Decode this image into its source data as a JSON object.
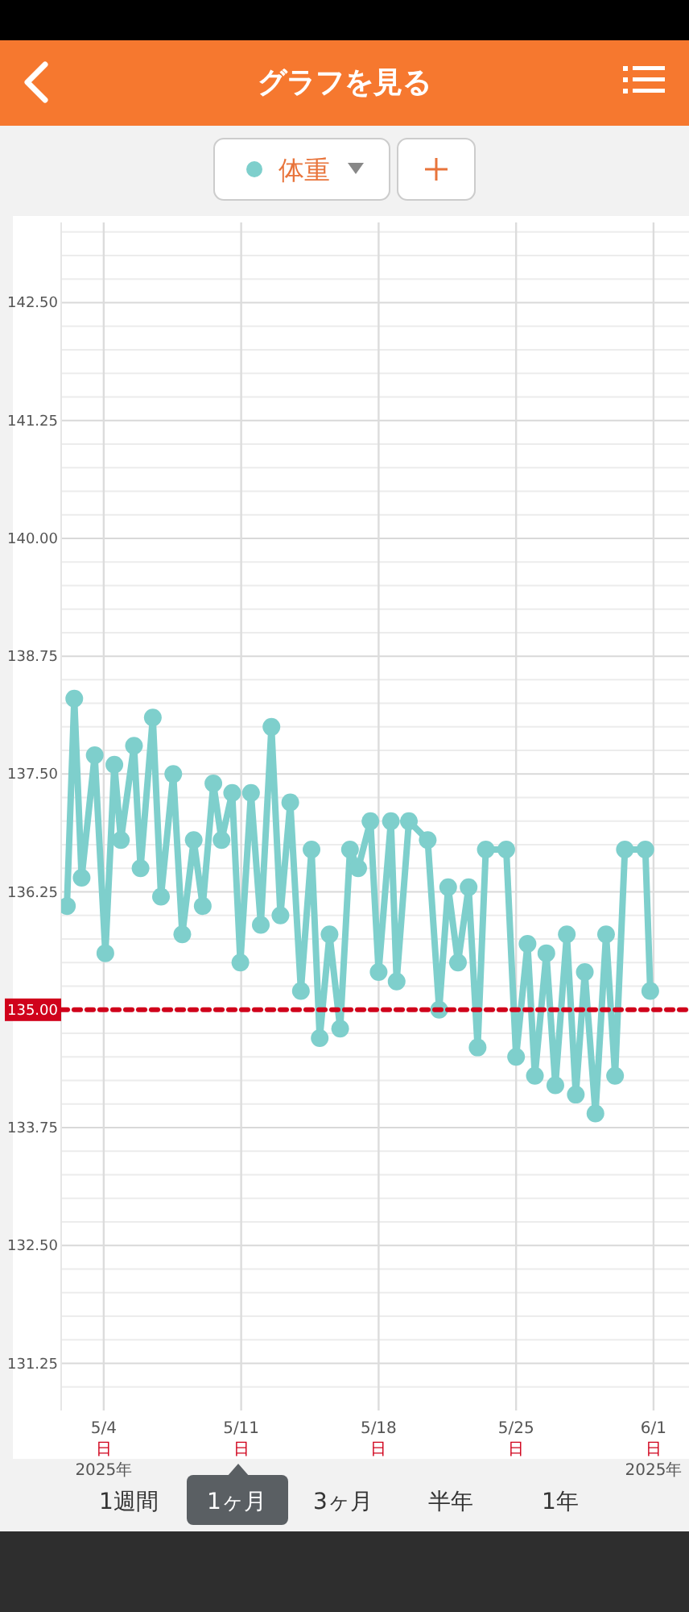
{
  "chart_data": {
    "type": "line",
    "title": "グラフを見る",
    "legend": "top",
    "marker": "circle",
    "line_style": "solid",
    "grid": true,
    "xlim": [
      "2025-05-01T20:00",
      "2025-06-01T04:00"
    ],
    "xticks": [
      {
        "value": "2025-05-04",
        "label": "5/4\n日\n2025年"
      },
      {
        "value": "2025-05-11",
        "label": "5/11\n日"
      },
      {
        "value": "2025-05-18",
        "label": "5/18\n日"
      },
      {
        "value": "2025-05-25",
        "label": "5/25\n日"
      },
      {
        "value": "2025-06-01",
        "label": "6/1\n日\n2025年"
      }
    ],
    "ylim": [
      130.75,
      143.35
    ],
    "yticks": [
      {
        "value": 131,
        "label": null
      },
      {
        "value": 131.25,
        "label": "131.25"
      },
      {
        "value": 131.5,
        "label": null
      },
      {
        "value": 131.75,
        "label": null
      },
      {
        "value": 132,
        "label": null
      },
      {
        "value": 132.25,
        "label": null
      },
      {
        "value": 132.5,
        "label": "132.50"
      },
      {
        "value": 132.75,
        "label": null
      },
      {
        "value": 133,
        "label": null
      },
      {
        "value": 133.25,
        "label": null
      },
      {
        "value": 133.5,
        "label": null
      },
      {
        "value": 133.75,
        "label": "133.75"
      },
      {
        "value": 134,
        "label": null
      },
      {
        "value": 134.25,
        "label": null
      },
      {
        "value": 134.5,
        "label": null
      },
      {
        "value": 134.75,
        "label": null
      },
      {
        "value": 135,
        "label": null
      },
      {
        "value": 135.25,
        "label": null
      },
      {
        "value": 135.5,
        "label": null
      },
      {
        "value": 135.75,
        "label": null
      },
      {
        "value": 136,
        "label": null
      },
      {
        "value": 136.25,
        "label": "136.25"
      },
      {
        "value": 136.5,
        "label": null
      },
      {
        "value": 136.75,
        "label": null
      },
      {
        "value": 137,
        "label": null
      },
      {
        "value": 137.25,
        "label": null
      },
      {
        "value": 137.5,
        "label": "137.50"
      },
      {
        "value": 137.75,
        "label": null
      },
      {
        "value": 138,
        "label": null
      },
      {
        "value": 138.25,
        "label": null
      },
      {
        "value": 138.5,
        "label": null
      },
      {
        "value": 138.75,
        "label": "138.75"
      },
      {
        "value": 139,
        "label": null
      },
      {
        "value": 139.25,
        "label": null
      },
      {
        "value": 139.5,
        "label": null
      },
      {
        "value": 139.75,
        "label": null
      },
      {
        "value": 140,
        "label": "140.00"
      },
      {
        "value": 140.25,
        "label": null
      },
      {
        "value": 140.5,
        "label": null
      },
      {
        "value": 140.75,
        "label": null
      },
      {
        "value": 141,
        "label": null
      },
      {
        "value": 141.25,
        "label": "141.25"
      },
      {
        "value": 141.5,
        "label": null
      },
      {
        "value": 141.75,
        "label": null
      },
      {
        "value": 142,
        "label": null
      },
      {
        "value": 142.25,
        "label": null
      },
      {
        "value": 142.5,
        "label": "142.50"
      },
      {
        "value": 142.75,
        "label": null
      },
      {
        "value": 143,
        "label": null
      },
      {
        "value": 143.25,
        "label": null
      }
    ],
    "ref_lines": [
      {
        "axis": "y",
        "value": 135,
        "label": "135.00",
        "color": "#d0021b",
        "line_style": "dotted"
      }
    ],
    "annotations": [
      "1週間",
      "1ヶ月",
      "3ヶ月",
      "半年",
      "1年"
    ],
    "series": [
      {
        "name": "体重",
        "color": "#7ecfcc",
        "x": [
          "2025-05-02T03:00",
          "2025-05-02T12:00",
          "2025-05-02T21:00",
          "2025-05-03T13:00",
          "2025-05-04T02:00",
          "2025-05-04T13:00",
          "2025-05-04T21:00",
          "2025-05-05T13:00",
          "2025-05-05T21:00",
          "2025-05-06T12:00",
          "2025-05-06T22:00",
          "2025-05-07T13:00",
          "2025-05-08T00:00",
          "2025-05-08T14:00",
          "2025-05-09T01:00",
          "2025-05-09T14:00",
          "2025-05-10T00:00",
          "2025-05-10T13:00",
          "2025-05-10T23:00",
          "2025-05-11T12:00",
          "2025-05-12T00:00",
          "2025-05-12T13:00",
          "2025-05-13T00:00",
          "2025-05-13T12:00",
          "2025-05-14T01:00",
          "2025-05-14T14:00",
          "2025-05-15T00:00",
          "2025-05-15T12:00",
          "2025-05-16T01:00",
          "2025-05-16T13:00",
          "2025-05-16T23:00",
          "2025-05-17T14:00",
          "2025-05-18T00:00",
          "2025-05-18T15:00",
          "2025-05-18T22:00",
          "2025-05-19T13:00",
          "2025-05-20T12:00",
          "2025-05-21T02:00",
          "2025-05-21T13:00",
          "2025-05-22T01:00",
          "2025-05-22T14:00",
          "2025-05-23T01:00",
          "2025-05-23T11:00",
          "2025-05-24T12:00",
          "2025-05-25T00:00",
          "2025-05-25T14:00",
          "2025-05-25T23:00",
          "2025-05-26T13:00",
          "2025-05-27T00:00",
          "2025-05-27T14:00",
          "2025-05-28T01:00",
          "2025-05-28T12:00",
          "2025-05-29T01:00",
          "2025-05-29T14:00",
          "2025-05-30T01:00",
          "2025-05-30T13:00",
          "2025-05-31T14:00",
          "2025-05-31T20:00"
        ],
        "values": [
          136.1,
          138.3,
          136.4,
          137.7,
          135.6,
          137.6,
          136.8,
          137.8,
          136.5,
          138.1,
          136.2,
          137.5,
          135.8,
          136.8,
          136.1,
          137.4,
          136.8,
          137.3,
          135.5,
          137.3,
          135.9,
          138.0,
          136.0,
          137.2,
          135.2,
          136.7,
          134.7,
          135.8,
          134.8,
          136.7,
          136.5,
          137.0,
          135.4,
          137.0,
          135.3,
          137.0,
          136.8,
          135.0,
          136.3,
          135.5,
          136.3,
          134.6,
          136.7,
          136.7,
          134.5,
          135.7,
          134.3,
          135.6,
          134.2,
          135.8,
          134.1,
          135.4,
          133.9,
          135.8,
          134.3,
          136.7,
          136.7,
          135.2
        ]
      }
    ]
  }
}
